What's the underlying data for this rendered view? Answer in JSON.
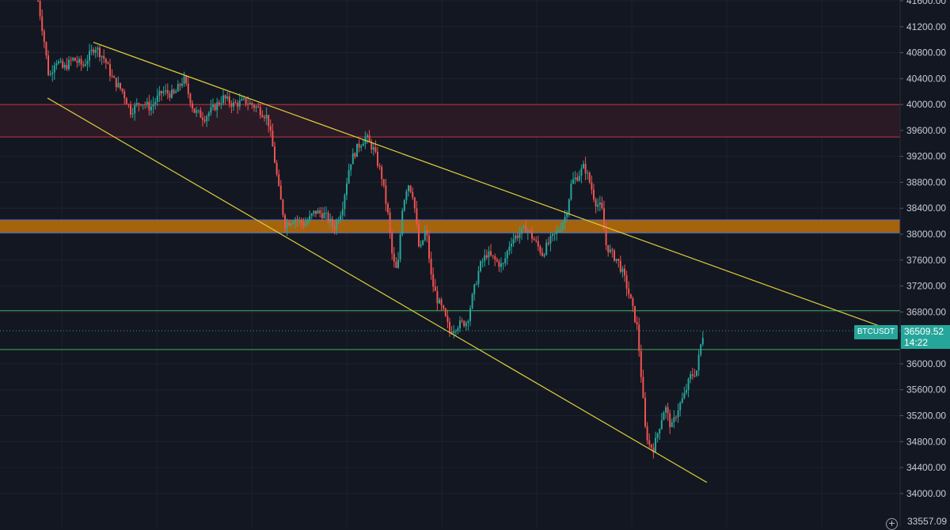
{
  "chart_data": {
    "type": "candlestick",
    "symbol": "BTCUSDT",
    "last_price": "36509.52",
    "countdown": "14:22",
    "bottom_price_label": "33557.09",
    "y_axis": {
      "ticks": [
        "41600.00",
        "41200.00",
        "40800.00",
        "40400.00",
        "40000.00",
        "39600.00",
        "39200.00",
        "38800.00",
        "38400.00",
        "38000.00",
        "37600.00",
        "37200.00",
        "36800.00",
        "36000.00",
        "35600.00",
        "35200.00",
        "34800.00",
        "34400.00",
        "34000.00"
      ],
      "range": [
        33557,
        41650
      ]
    },
    "zones": [
      {
        "name": "resistance-zone",
        "from": 39500,
        "to": 40000,
        "fill": "#2a1a26",
        "edge": "#c0383d"
      },
      {
        "name": "mid-zone",
        "from": 38020,
        "to": 38220,
        "fill": "#a5640c",
        "edge": "#4d6fd6"
      }
    ],
    "levels": [
      {
        "price": 36820,
        "color": "#3fae5a"
      },
      {
        "price": 36220,
        "color": "#3fae5a"
      }
    ],
    "trendlines": [
      {
        "from": {
          "x": 60,
          "p": 40100
        },
        "to": {
          "x": 893,
          "p": 34170
        },
        "color": "#e0cf3a"
      },
      {
        "from": {
          "x": 118,
          "p": 40960
        },
        "to": {
          "x": 1130,
          "p": 36500
        },
        "color": "#e0cf3a"
      }
    ],
    "series": [
      {
        "x": 48,
        "p": 41600
      },
      {
        "x": 55,
        "p": 41050
      },
      {
        "x": 62,
        "p": 40400
      },
      {
        "x": 70,
        "p": 40700
      },
      {
        "x": 80,
        "p": 40550
      },
      {
        "x": 92,
        "p": 40700
      },
      {
        "x": 105,
        "p": 40600
      },
      {
        "x": 120,
        "p": 40900
      },
      {
        "x": 132,
        "p": 40700
      },
      {
        "x": 142,
        "p": 40400
      },
      {
        "x": 155,
        "p": 40200
      },
      {
        "x": 165,
        "p": 39900
      },
      {
        "x": 178,
        "p": 40050
      },
      {
        "x": 190,
        "p": 39950
      },
      {
        "x": 205,
        "p": 40200
      },
      {
        "x": 220,
        "p": 40150
      },
      {
        "x": 232,
        "p": 40400
      },
      {
        "x": 245,
        "p": 39900
      },
      {
        "x": 258,
        "p": 39800
      },
      {
        "x": 270,
        "p": 39950
      },
      {
        "x": 282,
        "p": 40100
      },
      {
        "x": 295,
        "p": 40000
      },
      {
        "x": 310,
        "p": 40050
      },
      {
        "x": 325,
        "p": 39950
      },
      {
        "x": 338,
        "p": 39800
      },
      {
        "x": 345,
        "p": 39300
      },
      {
        "x": 352,
        "p": 38700
      },
      {
        "x": 360,
        "p": 38150
      },
      {
        "x": 372,
        "p": 38250
      },
      {
        "x": 385,
        "p": 38150
      },
      {
        "x": 398,
        "p": 38350
      },
      {
        "x": 410,
        "p": 38300
      },
      {
        "x": 422,
        "p": 38100
      },
      {
        "x": 432,
        "p": 38400
      },
      {
        "x": 442,
        "p": 39100
      },
      {
        "x": 452,
        "p": 39350
      },
      {
        "x": 462,
        "p": 39500
      },
      {
        "x": 472,
        "p": 39300
      },
      {
        "x": 482,
        "p": 38900
      },
      {
        "x": 490,
        "p": 38300
      },
      {
        "x": 496,
        "p": 37600
      },
      {
        "x": 502,
        "p": 37400
      },
      {
        "x": 508,
        "p": 38400
      },
      {
        "x": 515,
        "p": 38800
      },
      {
        "x": 522,
        "p": 38600
      },
      {
        "x": 530,
        "p": 37700
      },
      {
        "x": 538,
        "p": 38100
      },
      {
        "x": 545,
        "p": 37300
      },
      {
        "x": 552,
        "p": 37000
      },
      {
        "x": 560,
        "p": 36800
      },
      {
        "x": 568,
        "p": 36500
      },
      {
        "x": 578,
        "p": 36600
      },
      {
        "x": 590,
        "p": 36650
      },
      {
        "x": 598,
        "p": 37100
      },
      {
        "x": 606,
        "p": 37500
      },
      {
        "x": 615,
        "p": 37700
      },
      {
        "x": 625,
        "p": 37600
      },
      {
        "x": 635,
        "p": 37500
      },
      {
        "x": 645,
        "p": 37900
      },
      {
        "x": 655,
        "p": 38000
      },
      {
        "x": 665,
        "p": 38100
      },
      {
        "x": 675,
        "p": 37900
      },
      {
        "x": 685,
        "p": 37700
      },
      {
        "x": 695,
        "p": 37900
      },
      {
        "x": 705,
        "p": 38050
      },
      {
        "x": 715,
        "p": 38300
      },
      {
        "x": 722,
        "p": 38800
      },
      {
        "x": 730,
        "p": 38900
      },
      {
        "x": 738,
        "p": 39050
      },
      {
        "x": 745,
        "p": 38800
      },
      {
        "x": 752,
        "p": 38500
      },
      {
        "x": 760,
        "p": 38400
      },
      {
        "x": 765,
        "p": 37850
      },
      {
        "x": 772,
        "p": 37700
      },
      {
        "x": 780,
        "p": 37600
      },
      {
        "x": 788,
        "p": 37350
      },
      {
        "x": 795,
        "p": 37050
      },
      {
        "x": 800,
        "p": 36800
      },
      {
        "x": 805,
        "p": 36550
      },
      {
        "x": 810,
        "p": 35800
      },
      {
        "x": 815,
        "p": 35000
      },
      {
        "x": 820,
        "p": 34750
      },
      {
        "x": 826,
        "p": 34700
      },
      {
        "x": 832,
        "p": 35000
      },
      {
        "x": 840,
        "p": 35350
      },
      {
        "x": 848,
        "p": 35000
      },
      {
        "x": 856,
        "p": 35300
      },
      {
        "x": 864,
        "p": 35500
      },
      {
        "x": 872,
        "p": 35800
      },
      {
        "x": 880,
        "p": 35900
      },
      {
        "x": 886,
        "p": 36350
      },
      {
        "x": 889,
        "p": 36509
      }
    ],
    "colors": {
      "up": "#26a69a",
      "down": "#ef5350",
      "background": "#131722",
      "grid": "#1e222d",
      "axis_text": "#c9ccd3"
    }
  },
  "zoom_icon": "plus-circle-icon"
}
